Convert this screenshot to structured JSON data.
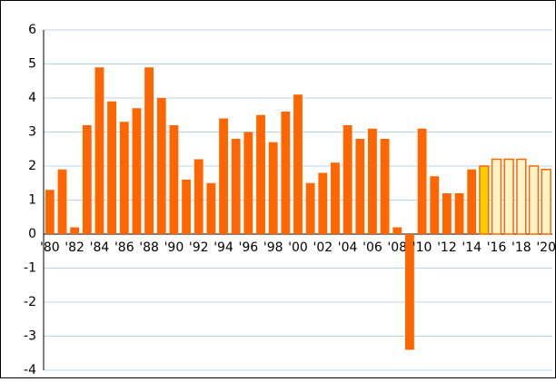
{
  "chart_data": {
    "type": "bar",
    "categories": [
      "'80",
      null,
      "'82",
      null,
      "'84",
      null,
      "'86",
      null,
      "'88",
      null,
      "'90",
      null,
      "'92",
      null,
      "'94",
      null,
      "'96",
      null,
      "'98",
      null,
      "'00",
      null,
      "'02",
      null,
      "'04",
      null,
      "'06",
      null,
      "'08",
      null,
      "'10",
      null,
      "'12",
      null,
      "'14",
      null,
      "'16",
      null,
      "'18",
      null,
      "'20"
    ],
    "values": [
      1.3,
      1.9,
      0.2,
      3.2,
      4.9,
      3.9,
      3.3,
      3.7,
      4.9,
      4.0,
      3.2,
      1.6,
      2.2,
      1.5,
      3.4,
      2.8,
      3.0,
      3.5,
      2.7,
      3.6,
      4.1,
      1.5,
      1.8,
      2.1,
      3.2,
      2.8,
      3.1,
      2.8,
      0.2,
      -3.4,
      3.1,
      1.7,
      1.2,
      1.2,
      1.9,
      2.0,
      2.2,
      2.2,
      2.2,
      2.0,
      1.9
    ],
    "color": "#ff6600",
    "fills": [
      "#ff6600",
      "#ff6600",
      "#ff6600",
      "#ff6600",
      "#ff6600",
      "#ff6600",
      "#ff6600",
      "#ff6600",
      "#ff6600",
      "#ff6600",
      "#ff6600",
      "#ff6600",
      "#ff6600",
      "#ff6600",
      "#ff6600",
      "#ff6600",
      "#ff6600",
      "#ff6600",
      "#ff6600",
      "#ff6600",
      "#ff6600",
      "#ff6600",
      "#ff6600",
      "#ff6600",
      "#ff6600",
      "#ff6600",
      "#ff6600",
      "#ff6600",
      "#ff6600",
      "#ff6600",
      "#ff6600",
      "#ff6600",
      "#ff6600",
      "#ff6600",
      "#ff6600",
      "#ffcc00",
      "#fff4c8",
      "#fff4c8",
      "#fff4c8",
      "#fff4c8",
      "#fff4c8"
    ],
    "ylim": [
      -4,
      6
    ],
    "yticks": [
      -4,
      -3,
      -2,
      -1,
      0,
      1,
      2,
      3,
      4,
      5,
      6
    ],
    "grid": true
  }
}
